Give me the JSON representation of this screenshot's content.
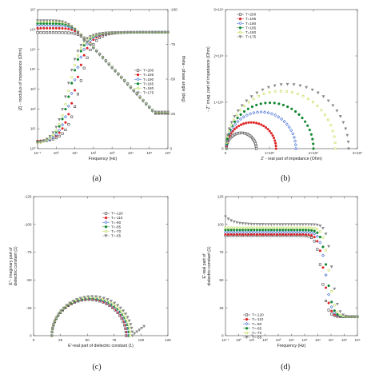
{
  "chart_data": [
    {
      "type": "scatter",
      "panel_label": "(a)",
      "xlabel": "Frequency (Hz)",
      "ylabel": "|Z| - modulus of impedance (Ohm)",
      "y2label": "theta - phase angle (deg)",
      "x_scale": "log",
      "xlim": [
        0.1,
        1000000
      ],
      "y_scale": "log",
      "ylim": [
        1,
        10000000
      ],
      "y2lim": [
        0,
        -100
      ],
      "x_ticks": [
        "10⁻¹",
        "10⁰",
        "10¹",
        "10²",
        "10³",
        "10⁴",
        "10⁵",
        "10⁶"
      ],
      "y_ticks": [
        "10⁰",
        "10¹",
        "10²",
        "10³",
        "10⁴",
        "10⁵",
        "10⁶",
        "10⁷"
      ],
      "y2_ticks": [
        "0",
        "-25",
        "-50",
        "-75",
        "-100"
      ],
      "legend": [
        "T=200",
        "T=195",
        "T=190",
        "T=185",
        "T=180",
        "T=175"
      ],
      "legend_position": "middle-right",
      "series": [
        {
          "name": "T=200",
          "color": "#333333",
          "marker": "open-square",
          "Z_plateau": 700000,
          "fc": 18,
          "theta_min": -5
        },
        {
          "name": "T=195",
          "color": "#dd2222",
          "marker": "filled-circle",
          "Z_plateau": 1150000,
          "fc": 11,
          "theta_min": -5
        },
        {
          "name": "T=190",
          "color": "#2255cc",
          "marker": "open-diamond",
          "Z_plateau": 1600000,
          "fc": 8,
          "theta_min": -4
        },
        {
          "name": "T=185",
          "color": "#118833",
          "marker": "filled-hexagon",
          "Z_plateau": 2000000,
          "fc": 6,
          "theta_min": -4
        },
        {
          "name": "T=180",
          "color": "#b8d83a",
          "marker": "open-circle",
          "Z_plateau": 2500000,
          "fc": 5,
          "theta_min": -3
        },
        {
          "name": "T=175",
          "color": "#888888",
          "marker": "filled-triangle-down",
          "Z_plateau": 2800000,
          "fc": 4,
          "theta_min": -3
        }
      ]
    },
    {
      "type": "scatter",
      "panel_label": "(b)",
      "xlabel": "Z' - real part of impedance (Ohm)",
      "ylabel": "- Z'' imag. part of impedance (Ohm)",
      "xlim": [
        0,
        3000000
      ],
      "ylim": [
        0,
        3000000
      ],
      "x_ticks": [
        "0",
        "1×10⁶",
        "2×10⁶",
        "3×10⁶"
      ],
      "y_ticks": [
        "0",
        "1×10⁶",
        "2×10⁶",
        "3×10⁶"
      ],
      "legend": [
        "T=200",
        "T=195",
        "T=190",
        "T=185",
        "T=180",
        "T=175"
      ],
      "legend_position": "top-left",
      "series": [
        {
          "name": "T=200",
          "color": "#333333",
          "marker": "open-square",
          "x_start": 20000,
          "x_end": 700000
        },
        {
          "name": "T=195",
          "color": "#dd2222",
          "marker": "filled-circle",
          "x_start": 20000,
          "x_end": 1150000
        },
        {
          "name": "T=190",
          "color": "#2255cc",
          "marker": "open-diamond",
          "x_start": 20000,
          "x_end": 1600000
        },
        {
          "name": "T=185",
          "color": "#118833",
          "marker": "filled-hexagon",
          "x_start": 20000,
          "x_end": 2000000
        },
        {
          "name": "T=180",
          "color": "#b8d83a",
          "marker": "open-circle",
          "x_start": 20000,
          "x_end": 2500000
        },
        {
          "name": "T=175",
          "color": "#888888",
          "marker": "filled-triangle-down",
          "x_start": 20000,
          "x_end": 2800000
        }
      ]
    },
    {
      "type": "scatter",
      "panel_label": "(c)",
      "xlabel": "E'-real part of dielectric constant (1)",
      "ylabel": "E''- imaginary part of dielectric constant (1)",
      "xlim": [
        0,
        125
      ],
      "ylim": [
        0,
        -125
      ],
      "x_ticks": [
        "0",
        "25",
        "50",
        "75",
        "100",
        "125"
      ],
      "y_ticks": [
        "0",
        "-25",
        "-50",
        "-75",
        "-100",
        "-125"
      ],
      "legend": [
        "T=-120",
        "T=-110",
        "T=-90",
        "T=-85",
        "T=-70",
        "T=-55"
      ],
      "legend_position": "top-center",
      "series": [
        {
          "name": "T=-120",
          "color": "#333333",
          "marker": "open-square",
          "e_inf": 17,
          "e_s": 86
        },
        {
          "name": "T=-110",
          "color": "#dd2222",
          "marker": "filled-circle",
          "e_inf": 17,
          "e_s": 87
        },
        {
          "name": "T=-90",
          "color": "#2255cc",
          "marker": "open-diamond",
          "e_inf": 17,
          "e_s": 88
        },
        {
          "name": "T=-85",
          "color": "#118833",
          "marker": "filled-hexagon",
          "e_inf": 17,
          "e_s": 89
        },
        {
          "name": "T=-70",
          "color": "#b8d83a",
          "marker": "open-circle",
          "e_inf": 17,
          "e_s": 90
        },
        {
          "name": "T=-55",
          "color": "#888888",
          "marker": "filled-triangle-down",
          "e_inf": 17,
          "e_s": 92
        }
      ]
    },
    {
      "type": "scatter",
      "panel_label": "(d)",
      "xlabel": "Frequency (Hz)",
      "ylabel": "E'-real part of dielectric constant (1)",
      "x_scale": "log",
      "xlim": [
        0.1,
        1000000000
      ],
      "ylim": [
        0,
        125
      ],
      "x_ticks": [
        "10⁻¹",
        "10⁰",
        "10¹",
        "10²",
        "10³",
        "10⁴",
        "10⁵",
        "10⁶",
        "10⁷",
        "10⁸",
        "10⁹"
      ],
      "y_ticks": [
        "0",
        "25",
        "50",
        "75",
        "100",
        "125"
      ],
      "legend": [
        "T=-120",
        "T=-110",
        "T=-90",
        "T=-85",
        "T=-70",
        "T=-55"
      ],
      "legend_position": "bottom-left",
      "series": [
        {
          "name": "T=-120",
          "color": "#333333",
          "marker": "open-square",
          "e_low": 90,
          "e_high": 17,
          "fc": 2000000
        },
        {
          "name": "T=-110",
          "color": "#dd2222",
          "marker": "filled-circle",
          "e_low": 91,
          "e_high": 17,
          "fc": 3000000
        },
        {
          "name": "T=-90",
          "color": "#2255cc",
          "marker": "open-diamond",
          "e_low": 93,
          "e_high": 17,
          "fc": 4000000
        },
        {
          "name": "T=-85",
          "color": "#118833",
          "marker": "filled-hexagon",
          "e_low": 95,
          "e_high": 17,
          "fc": 5000000
        },
        {
          "name": "T=-70",
          "color": "#b8d83a",
          "marker": "open-circle",
          "e_low": 97,
          "e_high": 17,
          "fc": 7000000
        },
        {
          "name": "T=-55",
          "color": "#888888",
          "marker": "filled-triangle-down",
          "e_low": 100,
          "e_high": 17,
          "fc": 12000000,
          "e_start": 107
        }
      ]
    }
  ]
}
